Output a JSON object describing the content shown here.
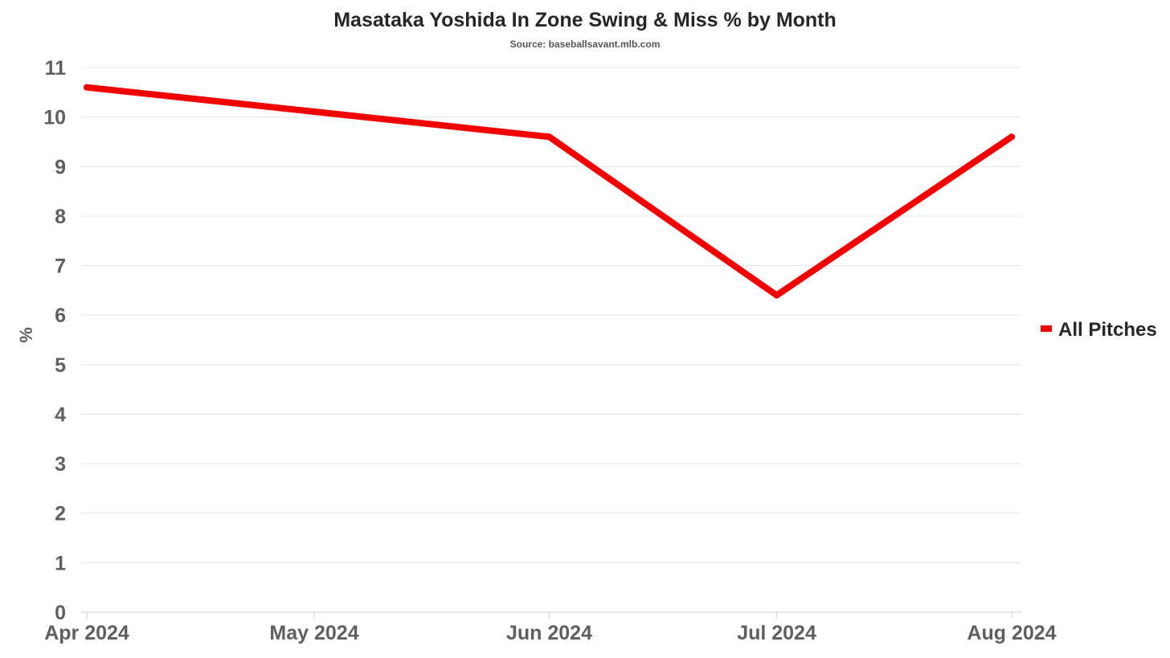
{
  "chart_data": {
    "type": "line",
    "title": "Masataka Yoshida In Zone Swing & Miss % by Month",
    "subtitle": "Source: baseballsavant.mlb.com",
    "xlabel": "",
    "ylabel": "%",
    "categories": [
      "Apr 2024",
      "May 2024",
      "Jun 2024",
      "Jul 2024",
      "Aug 2024"
    ],
    "x": [
      "2024-04-01",
      "2024-05-01",
      "2024-06-01",
      "2024-07-01",
      "2024-08-01"
    ],
    "series": [
      {
        "name": "All Pitches",
        "color": "#f20000",
        "points": [
          {
            "x": "2024-04-01",
            "y": 10.6
          },
          {
            "x": "2024-06-01",
            "y": 9.6
          },
          {
            "x": "2024-07-01",
            "y": 6.4
          },
          {
            "x": "2024-08-01",
            "y": 9.6
          }
        ]
      }
    ],
    "yticks": [
      0,
      1,
      2,
      3,
      4,
      5,
      6,
      7,
      8,
      9,
      10,
      11
    ],
    "ylim": [
      0,
      11
    ],
    "grid": true,
    "legend_position": "right"
  }
}
